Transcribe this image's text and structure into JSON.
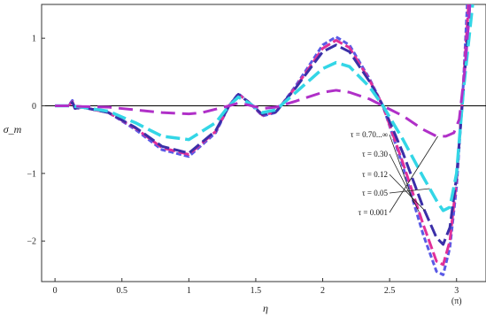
{
  "chart_data": {
    "type": "line",
    "xlabel": "η",
    "ylabel": "σ_m",
    "xlim": [
      -0.1,
      3.22
    ],
    "ylim": [
      -2.6,
      1.5
    ],
    "x_ticks": [
      {
        "value": 0,
        "label": "0"
      },
      {
        "value": 0.5,
        "label": "0.5"
      },
      {
        "value": 1,
        "label": "1"
      },
      {
        "value": 1.5,
        "label": "1.5"
      },
      {
        "value": 2,
        "label": "2"
      },
      {
        "value": 2.5,
        "label": "2.5"
      },
      {
        "value": 3,
        "label": "3"
      }
    ],
    "extra_x_label": {
      "value": 3.0,
      "label": "(π)"
    },
    "y_ticks": [
      {
        "value": 1,
        "label": "1"
      },
      {
        "value": 0,
        "label": "0"
      },
      {
        "value": -1,
        "label": "−1"
      },
      {
        "value": -2,
        "label": "−2"
      }
    ],
    "grid": false,
    "legend": "none",
    "series": [
      {
        "name": "τ = 0.70...∞",
        "color": "#5a5ae6",
        "dash": "6,3",
        "width": 3,
        "x": [
          0,
          0.1,
          0.13,
          0.15,
          0.2,
          0.4,
          0.6,
          0.8,
          1.0,
          1.2,
          1.3,
          1.37,
          1.45,
          1.55,
          1.65,
          1.8,
          2.0,
          2.1,
          2.2,
          2.35,
          2.45,
          2.6,
          2.75,
          2.85,
          2.9,
          2.95,
          3.0,
          3.05,
          3.08
        ],
        "y": [
          0,
          0,
          0.08,
          -0.05,
          -0.02,
          -0.1,
          -0.35,
          -0.65,
          -0.75,
          -0.4,
          0.0,
          0.18,
          0.05,
          -0.15,
          -0.1,
          0.3,
          0.9,
          1.02,
          0.9,
          0.4,
          0.0,
          -0.9,
          -1.9,
          -2.45,
          -2.5,
          -2.1,
          -1.2,
          0.3,
          1.5
        ]
      },
      {
        "name": "τ = 0.30",
        "color": "#e0309a",
        "dash": "12,4",
        "width": 3,
        "x": [
          0,
          0.1,
          0.13,
          0.15,
          0.2,
          0.4,
          0.6,
          0.8,
          1.0,
          1.2,
          1.3,
          1.37,
          1.45,
          1.55,
          1.65,
          1.8,
          2.0,
          2.1,
          2.2,
          2.35,
          2.45,
          2.6,
          2.75,
          2.85,
          2.9,
          2.95,
          3.0,
          3.05,
          3.09
        ],
        "y": [
          0,
          0,
          0.06,
          -0.04,
          -0.02,
          -0.1,
          -0.33,
          -0.62,
          -0.72,
          -0.38,
          0.0,
          0.17,
          0.05,
          -0.14,
          -0.09,
          0.28,
          0.85,
          0.97,
          0.86,
          0.38,
          0.0,
          -0.85,
          -1.75,
          -2.3,
          -2.35,
          -2.0,
          -1.1,
          0.3,
          1.5
        ]
      },
      {
        "name": "τ = 0.12",
        "color": "#3b2fa8",
        "dash": "14,5",
        "width": 3,
        "x": [
          0,
          0.1,
          0.13,
          0.15,
          0.2,
          0.4,
          0.6,
          0.8,
          1.0,
          1.2,
          1.3,
          1.37,
          1.45,
          1.55,
          1.65,
          1.8,
          2.0,
          2.1,
          2.2,
          2.35,
          2.45,
          2.6,
          2.75,
          2.85,
          2.9,
          2.95,
          3.0,
          3.05,
          3.1
        ],
        "y": [
          0,
          0,
          0.05,
          -0.04,
          -0.02,
          -0.1,
          -0.32,
          -0.6,
          -0.7,
          -0.37,
          0.0,
          0.17,
          0.05,
          -0.13,
          -0.09,
          0.27,
          0.8,
          0.9,
          0.8,
          0.36,
          0.0,
          -0.7,
          -1.5,
          -1.95,
          -2.05,
          -1.8,
          -1.05,
          0.2,
          1.5
        ]
      },
      {
        "name": "τ = 0.05",
        "color": "#33d6e6",
        "dash": "16,6",
        "width": 3.5,
        "x": [
          0,
          0.1,
          0.15,
          0.2,
          0.4,
          0.6,
          0.8,
          1.0,
          1.2,
          1.3,
          1.37,
          1.45,
          1.55,
          1.65,
          1.8,
          2.0,
          2.1,
          2.2,
          2.35,
          2.45,
          2.6,
          2.75,
          2.85,
          2.9,
          2.95,
          3.0,
          3.05,
          3.12
        ],
        "y": [
          0,
          0,
          -0.01,
          -0.02,
          -0.08,
          -0.25,
          -0.45,
          -0.5,
          -0.25,
          0.0,
          0.13,
          0.04,
          -0.1,
          -0.06,
          0.2,
          0.55,
          0.64,
          0.58,
          0.28,
          0.0,
          -0.5,
          -1.05,
          -1.4,
          -1.55,
          -1.5,
          -1.0,
          0.2,
          1.5
        ]
      },
      {
        "name": "τ = 0.001",
        "color": "#b030c8",
        "dash": "16,8",
        "width": 3,
        "x": [
          0,
          0.1,
          0.2,
          0.4,
          0.6,
          0.8,
          1.0,
          1.1,
          1.2,
          1.3,
          1.37,
          1.45,
          1.55,
          1.65,
          1.8,
          2.0,
          2.1,
          2.2,
          2.35,
          2.45,
          2.6,
          2.75,
          2.85,
          2.92,
          2.98,
          3.02,
          3.06,
          3.1
        ],
        "y": [
          0,
          0,
          -0.01,
          -0.02,
          -0.06,
          -0.1,
          -0.12,
          -0.1,
          -0.05,
          0.0,
          0.04,
          0.01,
          -0.04,
          -0.02,
          0.07,
          0.2,
          0.23,
          0.2,
          0.1,
          0.0,
          -0.15,
          -0.35,
          -0.45,
          -0.45,
          -0.4,
          -0.2,
          0.5,
          1.5
        ]
      }
    ],
    "annotations": [
      {
        "text": "τ = 0.70...∞",
        "series": 0
      },
      {
        "text": "τ = 0.30",
        "series": 1
      },
      {
        "text": "τ = 0.12",
        "series": 2
      },
      {
        "text": "τ = 0.05",
        "series": 3
      },
      {
        "text": "τ = 0.001",
        "series": 4
      }
    ]
  }
}
